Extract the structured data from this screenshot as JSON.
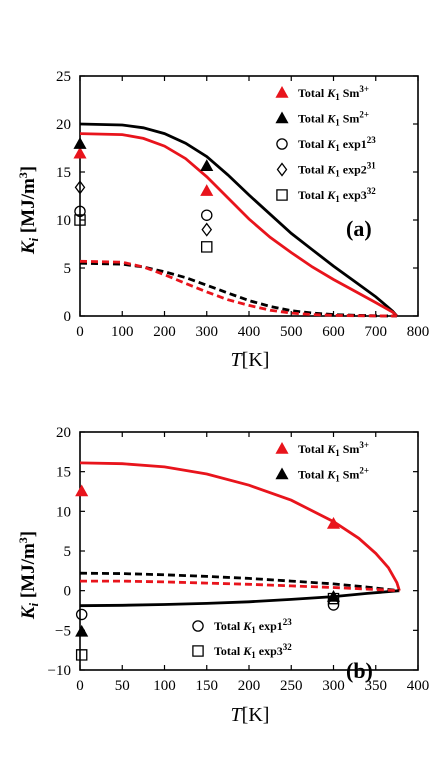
{
  "chart_data": [
    {
      "type": "line",
      "panel_label": "(a)",
      "xlabel_var": "T",
      "xlabel_unit": "[K]",
      "ylabel_var": "K",
      "ylabel_sub": "i",
      "ylabel_unit": "[MJ/m",
      "ylabel_exp": "3",
      "ylabel_close": "]",
      "xlim": [
        0,
        800
      ],
      "ylim": [
        0,
        25
      ],
      "xticks": [
        0,
        100,
        200,
        300,
        400,
        500,
        600,
        700,
        800
      ],
      "yticks": [
        0,
        5,
        10,
        15,
        20,
        25
      ],
      "lines": [
        {
          "color": "#000000",
          "dash": false,
          "points": [
            [
              0,
              20.0
            ],
            [
              100,
              19.9
            ],
            [
              150,
              19.6
            ],
            [
              200,
              19.0
            ],
            [
              250,
              18.0
            ],
            [
              300,
              16.6
            ],
            [
              350,
              14.7
            ],
            [
              400,
              12.6
            ],
            [
              450,
              10.6
            ],
            [
              500,
              8.6
            ],
            [
              550,
              6.9
            ],
            [
              600,
              5.2
            ],
            [
              650,
              3.6
            ],
            [
              700,
              2.0
            ],
            [
              740,
              0.5
            ],
            [
              750,
              0.0
            ]
          ]
        },
        {
          "color": "#e8141c",
          "dash": false,
          "points": [
            [
              0,
              19.0
            ],
            [
              100,
              18.9
            ],
            [
              150,
              18.5
            ],
            [
              200,
              17.7
            ],
            [
              250,
              16.4
            ],
            [
              300,
              14.5
            ],
            [
              350,
              12.3
            ],
            [
              400,
              10.1
            ],
            [
              450,
              8.2
            ],
            [
              500,
              6.6
            ],
            [
              550,
              5.1
            ],
            [
              600,
              3.8
            ],
            [
              650,
              2.6
            ],
            [
              700,
              1.4
            ],
            [
              740,
              0.4
            ],
            [
              750,
              0.0
            ]
          ]
        },
        {
          "color": "#000000",
          "dash": true,
          "points": [
            [
              0,
              5.5
            ],
            [
              100,
              5.4
            ],
            [
              150,
              5.1
            ],
            [
              200,
              4.6
            ],
            [
              250,
              4.0
            ],
            [
              300,
              3.2
            ],
            [
              350,
              2.4
            ],
            [
              400,
              1.6
            ],
            [
              450,
              1.0
            ],
            [
              500,
              0.55
            ],
            [
              550,
              0.3
            ],
            [
              600,
              0.15
            ],
            [
              650,
              0.07
            ],
            [
              700,
              0.02
            ],
            [
              750,
              0.0
            ]
          ]
        },
        {
          "color": "#e8141c",
          "dash": true,
          "points": [
            [
              0,
              5.7
            ],
            [
              100,
              5.6
            ],
            [
              150,
              5.1
            ],
            [
              200,
              4.3
            ],
            [
              250,
              3.4
            ],
            [
              300,
              2.5
            ],
            [
              350,
              1.7
            ],
            [
              400,
              1.1
            ],
            [
              450,
              0.6
            ],
            [
              500,
              0.3
            ],
            [
              550,
              0.15
            ],
            [
              600,
              0.07
            ],
            [
              650,
              0.03
            ],
            [
              700,
              0.01
            ],
            [
              750,
              0.0
            ]
          ]
        }
      ],
      "series": [
        {
          "name_pre": "Total ",
          "name_var": "K",
          "name_sub": "1",
          "name_post": " Sm",
          "name_sup": "3+",
          "marker": "triangle",
          "filled": true,
          "color": "#e8141c",
          "points": [
            [
              0,
              16.9
            ],
            [
              300,
              13.0
            ]
          ]
        },
        {
          "name_pre": "Total ",
          "name_var": "K",
          "name_sub": "1",
          "name_post": " Sm",
          "name_sup": "2+",
          "marker": "triangle",
          "filled": true,
          "color": "#000000",
          "points": [
            [
              0,
              17.9
            ],
            [
              300,
              15.6
            ]
          ]
        },
        {
          "name_pre": "Total ",
          "name_var": "K",
          "name_sub": "1",
          "name_post": " exp1",
          "name_sup": "23",
          "marker": "circle",
          "filled": false,
          "color": "#000000",
          "points": [
            [
              0,
              10.9
            ],
            [
              300,
              10.5
            ]
          ]
        },
        {
          "name_pre": "Total ",
          "name_var": "K",
          "name_sub": "1",
          "name_post": " exp2",
          "name_sup": "31",
          "marker": "diamond",
          "filled": false,
          "color": "#000000",
          "points": [
            [
              0,
              13.4
            ],
            [
              300,
              9.0
            ]
          ]
        },
        {
          "name_pre": "Total ",
          "name_var": "K",
          "name_sub": "1",
          "name_post": " exp3",
          "name_sup": "32",
          "marker": "square",
          "filled": false,
          "color": "#000000",
          "points": [
            [
              0,
              10.0
            ],
            [
              300,
              7.2
            ]
          ]
        }
      ]
    },
    {
      "type": "line",
      "panel_label": "(b)",
      "xlabel_var": "T",
      "xlabel_unit": "[K]",
      "ylabel_var": "K",
      "ylabel_sub": "i",
      "ylabel_unit": "[MJ/m",
      "ylabel_exp": "3",
      "ylabel_close": "]",
      "xlim": [
        0,
        400
      ],
      "ylim": [
        -10,
        20
      ],
      "xticks": [
        0,
        50,
        100,
        150,
        200,
        250,
        300,
        350,
        400
      ],
      "yticks": [
        -10,
        -5,
        0,
        5,
        10,
        15,
        20
      ],
      "lines": [
        {
          "color": "#e8141c",
          "dash": false,
          "points": [
            [
              0,
              16.1
            ],
            [
              50,
              16.0
            ],
            [
              100,
              15.6
            ],
            [
              150,
              14.7
            ],
            [
              200,
              13.3
            ],
            [
              250,
              11.4
            ],
            [
              300,
              8.7
            ],
            [
              330,
              6.6
            ],
            [
              350,
              4.7
            ],
            [
              365,
              2.9
            ],
            [
              375,
              1.0
            ],
            [
              378,
              0.0
            ]
          ]
        },
        {
          "color": "#000000",
          "dash": false,
          "points": [
            [
              0,
              -1.9
            ],
            [
              50,
              -1.85
            ],
            [
              100,
              -1.75
            ],
            [
              150,
              -1.6
            ],
            [
              200,
              -1.4
            ],
            [
              250,
              -1.1
            ],
            [
              300,
              -0.75
            ],
            [
              340,
              -0.35
            ],
            [
              378,
              0.0
            ]
          ]
        },
        {
          "color": "#000000",
          "dash": true,
          "points": [
            [
              0,
              2.2
            ],
            [
              50,
              2.15
            ],
            [
              100,
              2.0
            ],
            [
              150,
              1.8
            ],
            [
              200,
              1.55
            ],
            [
              250,
              1.2
            ],
            [
              300,
              0.85
            ],
            [
              340,
              0.45
            ],
            [
              378,
              0.0
            ]
          ]
        },
        {
          "color": "#e8141c",
          "dash": true,
          "points": [
            [
              0,
              1.2
            ],
            [
              50,
              1.2
            ],
            [
              100,
              1.1
            ],
            [
              150,
              0.95
            ],
            [
              200,
              0.8
            ],
            [
              250,
              0.6
            ],
            [
              300,
              0.4
            ],
            [
              340,
              0.2
            ],
            [
              378,
              0.0
            ]
          ]
        }
      ],
      "series": [
        {
          "name_pre": "Total ",
          "name_var": "K",
          "name_sub": "1",
          "name_post": " Sm",
          "name_sup": "3+",
          "marker": "triangle",
          "filled": true,
          "color": "#e8141c",
          "points": [
            [
              2,
              12.5
            ],
            [
              300,
              8.4
            ]
          ]
        },
        {
          "name_pre": "Total ",
          "name_var": "K",
          "name_sub": "1",
          "name_post": " Sm",
          "name_sup": "2+",
          "marker": "triangle",
          "filled": true,
          "color": "#000000",
          "points": [
            [
              2,
              -5.2
            ],
            [
              300,
              -0.8
            ]
          ]
        },
        {
          "name_pre": "Total ",
          "name_var": "K",
          "name_sub": "1",
          "name_post": " exp1",
          "name_sup": "23",
          "marker": "circle",
          "filled": false,
          "color": "#000000",
          "points": [
            [
              2,
              -3.0
            ],
            [
              300,
              -1.8
            ]
          ]
        },
        {
          "name_pre": "Total ",
          "name_var": "K",
          "name_sub": "1",
          "name_post": " exp3",
          "name_sup": "32",
          "marker": "square",
          "filled": false,
          "color": "#000000",
          "points": [
            [
              2,
              -8.1
            ],
            [
              300,
              -1.0
            ]
          ]
        }
      ]
    }
  ]
}
